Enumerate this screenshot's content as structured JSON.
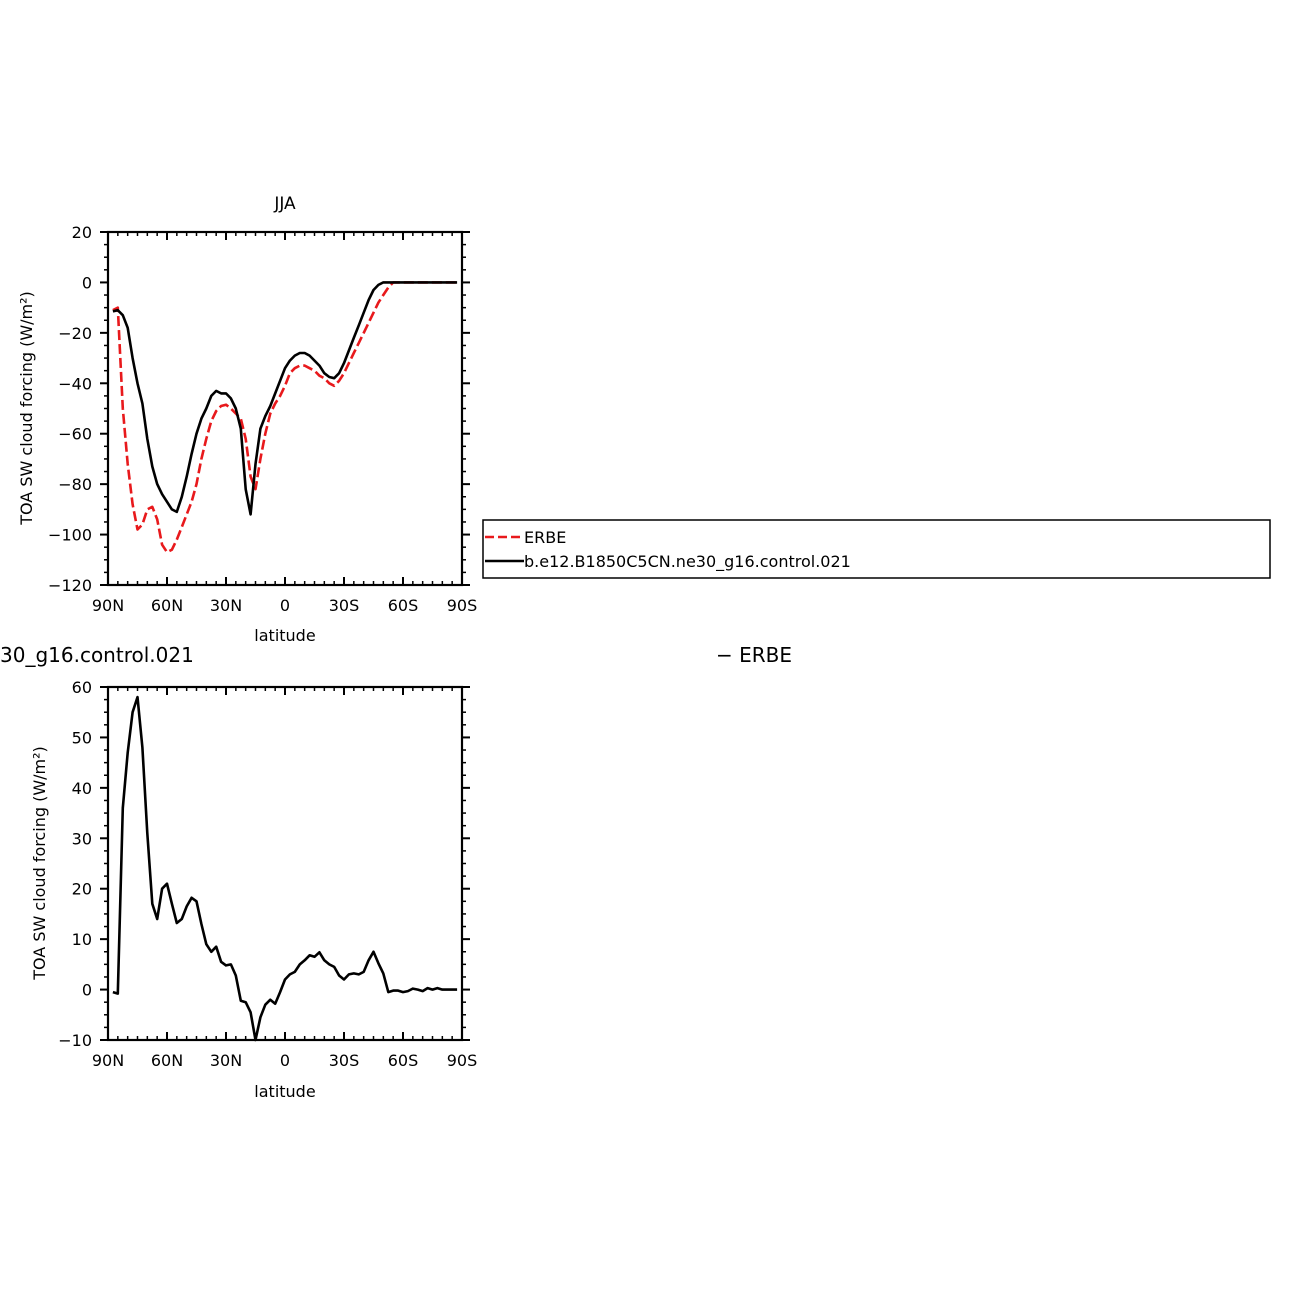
{
  "colors": {
    "erbe": "#e8191c",
    "model": "#000000",
    "axis": "#000000",
    "background": "#ffffff"
  },
  "chart_data": [
    {
      "type": "line",
      "title": "JJA",
      "xlabel": "latitude",
      "ylabel": "TOA SW cloud forcing (W/m²)",
      "xticks": [
        "90N",
        "60N",
        "30N",
        "0",
        "30S",
        "60S",
        "90S"
      ],
      "yticks": [
        "20",
        "0",
        "−20",
        "−40",
        "−60",
        "−80",
        "−100",
        "−120"
      ],
      "xlim": [
        90,
        -90
      ],
      "ylim": [
        -120,
        20
      ],
      "legend": {
        "placement": "right",
        "entries": [
          "ERBE",
          "b.e12.B1850C5CN.ne30_g16.control.021"
        ]
      },
      "series": [
        {
          "name": "ERBE",
          "style": "dashed",
          "color": "#e8191c",
          "x": [
            87.5,
            85,
            82.5,
            80,
            77.5,
            75,
            72.5,
            70,
            67.5,
            65,
            62.5,
            60,
            57.5,
            55,
            52.5,
            50,
            47.5,
            45,
            42.5,
            40,
            37.5,
            35,
            32.5,
            30,
            27.5,
            25,
            22.5,
            20,
            17.5,
            15,
            12.5,
            10,
            7.5,
            5,
            2.5,
            0,
            -2.5,
            -5,
            -7.5,
            -10,
            -12.5,
            -15,
            -17.5,
            -20,
            -22.5,
            -25,
            -27.5,
            -30,
            -32.5,
            -35,
            -37.5,
            -40,
            -42.5,
            -45,
            -47.5,
            -50,
            -52.5,
            -55,
            -57.5,
            -60,
            -62.5,
            -65,
            -67.5,
            -70,
            -72.5,
            -75,
            -77.5,
            -80,
            -82.5,
            -85,
            -87.5
          ],
          "y": [
            -11,
            -10,
            -50,
            -72,
            -88,
            -98,
            -96,
            -90,
            -89,
            -94,
            -104,
            -107,
            -106,
            -102,
            -97,
            -92,
            -87,
            -80,
            -70,
            -62,
            -55,
            -51,
            -49,
            -48.5,
            -50,
            -52,
            -54,
            -62,
            -77,
            -82,
            -70,
            -60,
            -52,
            -48,
            -45,
            -41,
            -36,
            -34,
            -33,
            -33,
            -34,
            -35,
            -37,
            -38,
            -40,
            -41,
            -39,
            -36,
            -32,
            -28,
            -24,
            -20,
            -16,
            -12,
            -8,
            -5,
            -2,
            0,
            0,
            0,
            0,
            0,
            0,
            0,
            0,
            0,
            0,
            0,
            0,
            0,
            0
          ]
        },
        {
          "name": "b.e12.B1850C5CN.ne30_g16.control.021",
          "style": "solid",
          "color": "#000000",
          "x": [
            87.5,
            85,
            82.5,
            80,
            77.5,
            75,
            72.5,
            70,
            67.5,
            65,
            62.5,
            60,
            57.5,
            55,
            52.5,
            50,
            47.5,
            45,
            42.5,
            40,
            37.5,
            35,
            32.5,
            30,
            27.5,
            25,
            22.5,
            20,
            17.5,
            15,
            12.5,
            10,
            7.5,
            5,
            2.5,
            0,
            -2.5,
            -5,
            -7.5,
            -10,
            -12.5,
            -15,
            -17.5,
            -20,
            -22.5,
            -25,
            -27.5,
            -30,
            -32.5,
            -35,
            -37.5,
            -40,
            -42.5,
            -45,
            -47.5,
            -50,
            -52.5,
            -55,
            -57.5,
            -60,
            -62.5,
            -65,
            -67.5,
            -70,
            -72.5,
            -75,
            -77.5,
            -80,
            -82.5,
            -85,
            -87.5
          ],
          "y": [
            -11.5,
            -11,
            -13,
            -18,
            -30,
            -40,
            -48,
            -62,
            -73,
            -80,
            -84,
            -87,
            -90,
            -91,
            -85,
            -77,
            -68,
            -60,
            -54,
            -50,
            -45,
            -43,
            -44,
            -44,
            -46,
            -50,
            -58,
            -82,
            -92,
            -72,
            -58,
            -53,
            -49,
            -44,
            -39,
            -34,
            -31,
            -29,
            -28,
            -28,
            -29,
            -31,
            -33,
            -36,
            -37.5,
            -38,
            -36,
            -32,
            -27,
            -22,
            -17,
            -12,
            -7,
            -3,
            -1,
            0,
            0,
            0,
            0,
            0,
            0,
            0,
            0,
            0,
            0,
            0,
            0,
            0,
            0,
            0,
            0
          ]
        }
      ]
    },
    {
      "type": "line",
      "title": "30_g16.control.021",
      "title_right": "− ERBE",
      "xlabel": "latitude",
      "ylabel": "TOA SW cloud forcing (W/m²)",
      "xticks": [
        "90N",
        "60N",
        "30N",
        "0",
        "30S",
        "60S",
        "90S"
      ],
      "yticks": [
        "60",
        "50",
        "40",
        "30",
        "20",
        "10",
        "0",
        "−10"
      ],
      "xlim": [
        90,
        -90
      ],
      "ylim": [
        -10,
        60
      ],
      "series": [
        {
          "style": "solid",
          "color": "#000000",
          "x": [
            87.5,
            85,
            82.5,
            80,
            77.5,
            75,
            72.5,
            70,
            67.5,
            65,
            62.5,
            60,
            57.5,
            55,
            52.5,
            50,
            47.5,
            45,
            42.5,
            40,
            37.5,
            35,
            32.5,
            30,
            27.5,
            25,
            22.5,
            20,
            17.5,
            15,
            12.5,
            10,
            7.5,
            5,
            2.5,
            0,
            -2.5,
            -5,
            -7.5,
            -10,
            -12.5,
            -15,
            -17.5,
            -20,
            -22.5,
            -25,
            -27.5,
            -30,
            -32.5,
            -35,
            -37.5,
            -40,
            -42.5,
            -45,
            -47.5,
            -50,
            -52.5,
            -55,
            -57.5,
            -60,
            -62.5,
            -65,
            -67.5,
            -70,
            -72.5,
            -75,
            -77.5,
            -80,
            -82.5,
            -85,
            -87.5
          ],
          "y": [
            -0.5,
            -0.8,
            36,
            47,
            55,
            58,
            48,
            31,
            17,
            14,
            20,
            21,
            17,
            13.2,
            14,
            16.5,
            18.2,
            17.5,
            13,
            9,
            7.5,
            8.5,
            5.5,
            4.8,
            5,
            2.8,
            -2.2,
            -2.5,
            -4.5,
            -10,
            -5.5,
            -3,
            -2,
            -2.8,
            -0.5,
            2,
            3,
            3.5,
            5,
            5.8,
            6.8,
            6.5,
            7.4,
            5.8,
            5,
            4.5,
            2.8,
            2,
            3,
            3.2,
            3,
            3.5,
            5.8,
            7.5,
            5.2,
            3.2,
            -0.5,
            -0.2,
            -0.2,
            -0.5,
            -0.3,
            0.2,
            0,
            -0.3,
            0.3,
            0,
            0.3,
            0,
            0,
            0,
            0
          ]
        }
      ]
    }
  ]
}
